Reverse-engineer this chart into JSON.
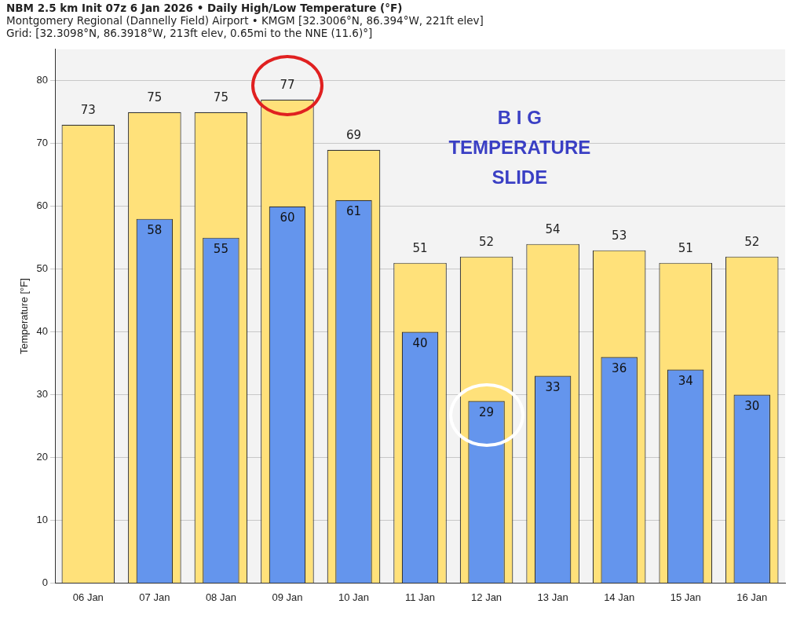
{
  "chart_data": {
    "type": "bar",
    "title": "NBM 2.5 km Init 07z 6 Jan 2026 • Daily High/Low Temperature (°F)",
    "subtitle": "Montgomery Regional (Dannelly Field) Airport • KMGM [32.3006°N, 86.394°W, 221ft elev]\nGrid: [32.3098°N, 86.3918°W, 213ft elev, 0.65mi to the NNE (11.6)°]",
    "ylabel": "Temperature [°F]",
    "categories": [
      "06 Jan",
      "07 Jan",
      "08 Jan",
      "09 Jan",
      "10 Jan",
      "11 Jan",
      "12 Jan",
      "13 Jan",
      "14 Jan",
      "15 Jan",
      "16 Jan"
    ],
    "series": [
      {
        "color": "#ffe17a",
        "values": [
          73,
          75,
          75,
          77,
          69,
          51,
          52,
          54,
          53,
          51,
          52
        ]
      },
      {
        "color": "#6495ed",
        "values": [
          null,
          58,
          55,
          60,
          61,
          40,
          29,
          33,
          36,
          34,
          30
        ]
      }
    ],
    "ylim": [
      0,
      85
    ],
    "yticks": [
      0,
      10,
      20,
      30,
      40,
      50,
      60,
      70,
      80
    ],
    "grid": "y",
    "legend": false,
    "data_labels": true,
    "annotations": [
      "B I G\nTEMPERATURE\nSLIDE"
    ]
  }
}
